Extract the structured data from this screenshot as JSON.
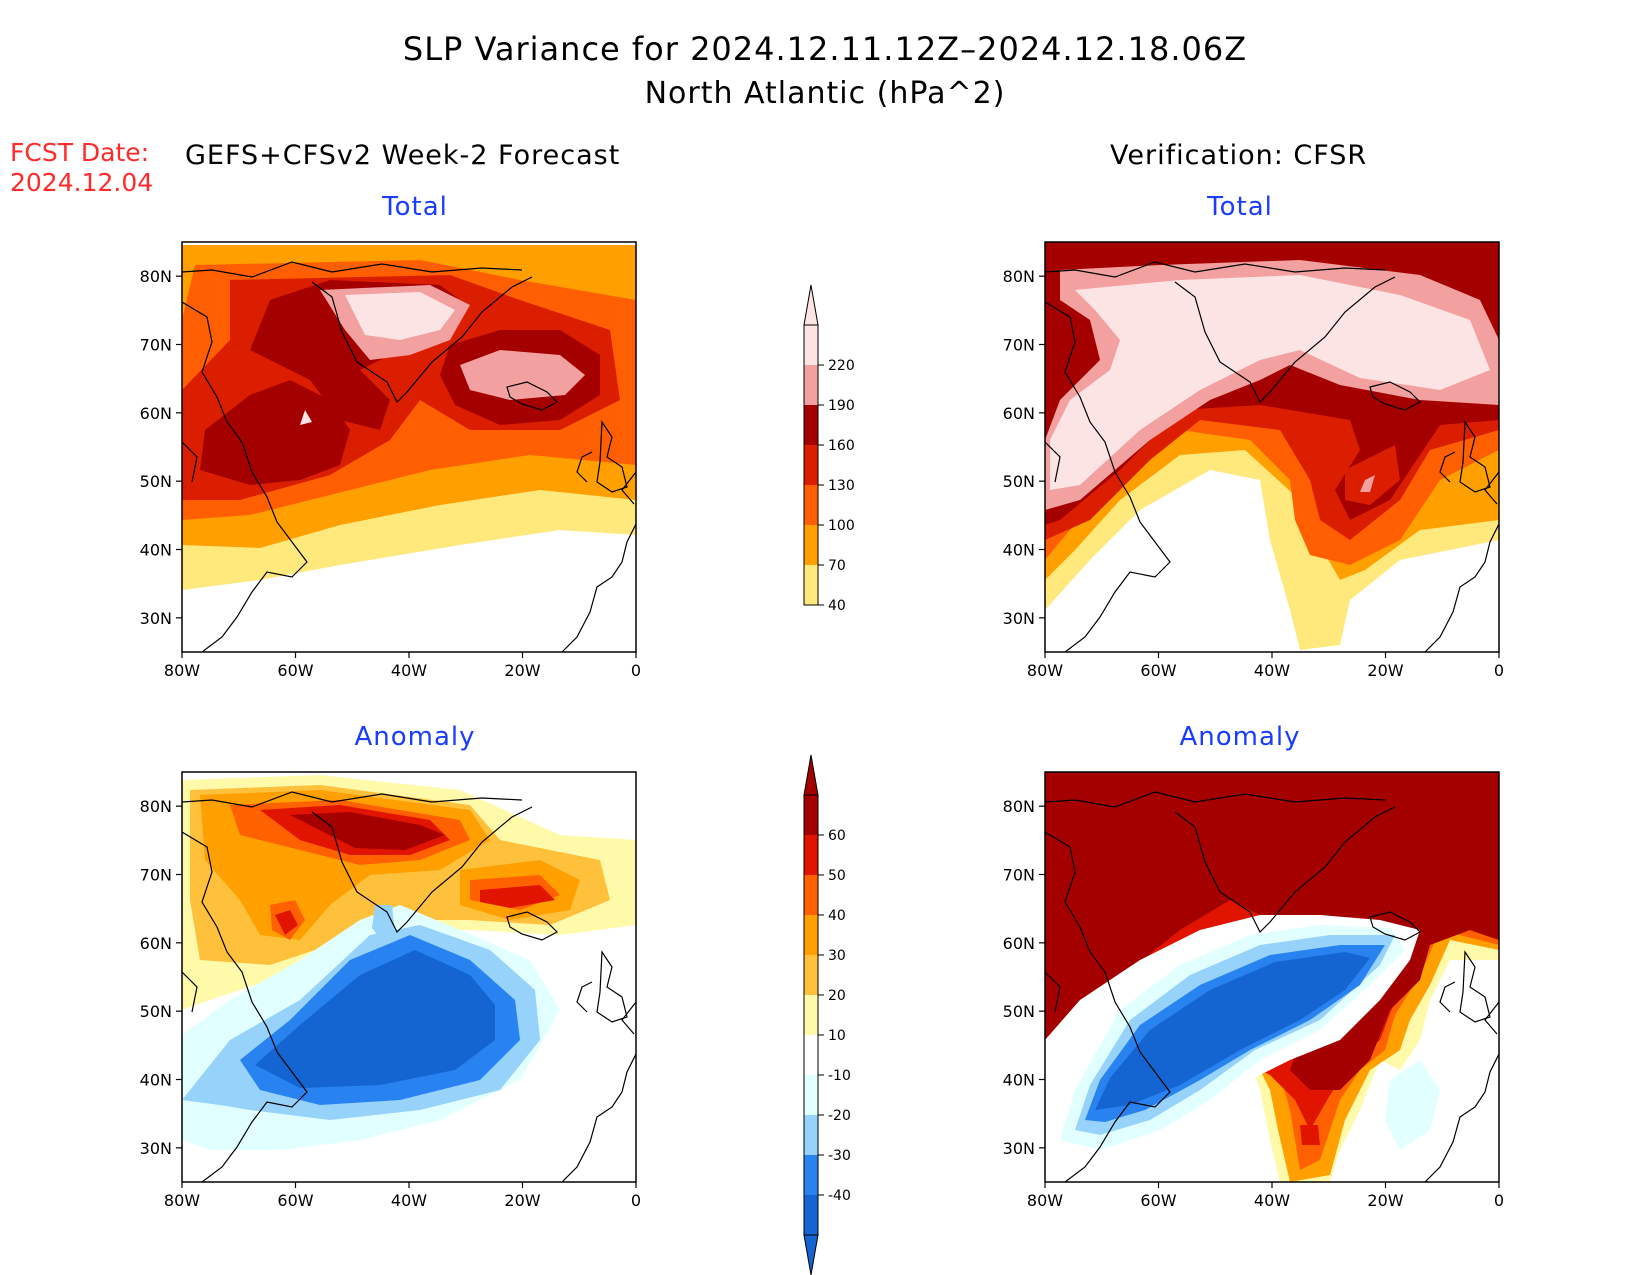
{
  "title": {
    "line1": "SLP Variance for 2024.12.11.12Z–2024.12.18.06Z",
    "line2": "North Atlantic (hPa^2)"
  },
  "fcst": {
    "label": "FCST Date:",
    "date": "2024.12.04"
  },
  "left_header": "GEFS+CFSv2 Week-2 Forecast",
  "right_header": "Verification: CFSR",
  "panels": {
    "fcst_total": "Total",
    "fcst_anom": "Anomaly",
    "ver_total": "Total",
    "ver_anom": "Anomaly"
  },
  "axes": {
    "lon_labels": [
      "80W",
      "60W",
      "40W",
      "20W",
      "0"
    ],
    "lat_labels": [
      "80N",
      "70N",
      "60N",
      "50N",
      "40N",
      "30N"
    ],
    "lon_range": [
      -80,
      0
    ],
    "lat_range": [
      25,
      85
    ]
  },
  "colorbars": {
    "total": {
      "levels": [
        "40",
        "70",
        "100",
        "130",
        "160",
        "190",
        "220"
      ],
      "colors": [
        "#ffe87c",
        "#ffa000",
        "#ff5f00",
        "#dc1e00",
        "#a50000",
        "#f2a0a0",
        "#fde4e4"
      ]
    },
    "anomaly": {
      "levels": [
        "-40",
        "-30",
        "-20",
        "-10",
        "10",
        "20",
        "30",
        "40",
        "50",
        "60"
      ],
      "colors": [
        "#1464d2",
        "#2882f0",
        "#96d2fa",
        "#e1ffff",
        "#ffffff",
        "#fffaaa",
        "#ffc03c",
        "#ffa000",
        "#ff6000",
        "#e11400",
        "#a50000"
      ]
    }
  }
}
